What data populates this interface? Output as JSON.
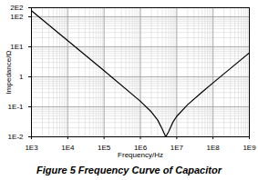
{
  "chart_data": {
    "type": "line",
    "caption": "Figure 5 Frequency Curve of Capacitor",
    "x_label": "Frequency/Hz",
    "y_label": "Impedance/Ω",
    "log": true,
    "grid": true,
    "xlim": [
      1000,
      1000000000
    ],
    "xticks": [
      {
        "value": 1000,
        "label": "1E3"
      },
      {
        "value": 10000,
        "label": "1E4"
      },
      {
        "value": 100000,
        "label": "1E5"
      },
      {
        "value": 1000000,
        "label": "1E6"
      },
      {
        "value": 10000000,
        "label": "1E7"
      },
      {
        "value": 100000000,
        "label": "1E8"
      },
      {
        "value": 1000000000,
        "label": "1E9"
      }
    ],
    "ylim": [
      0.01,
      200
    ],
    "yticks": [
      {
        "value": 0.01,
        "label": "1E-2"
      },
      {
        "value": 0.1,
        "label": "1E-1"
      },
      1,
      {
        "value": 10,
        "label": "1E1"
      },
      {
        "value": 100,
        "label": "1E2"
      },
      {
        "value": 200,
        "label": "2E2"
      }
    ],
    "series": [
      {
        "name": "Impedance",
        "color": "#000000",
        "x": [
          1000,
          10000,
          100000,
          1000000,
          2000000,
          3000000,
          4000000,
          5000000,
          6000000,
          8000000,
          10000000,
          20000000,
          50000000,
          100000000,
          300000000,
          1000000000
        ],
        "values": [
          159,
          15.9,
          1.59,
          0.153,
          0.068,
          0.036,
          0.018,
          0.01,
          0.015,
          0.032,
          0.048,
          0.118,
          0.311,
          0.628,
          1.885,
          6.28
        ]
      }
    ]
  }
}
